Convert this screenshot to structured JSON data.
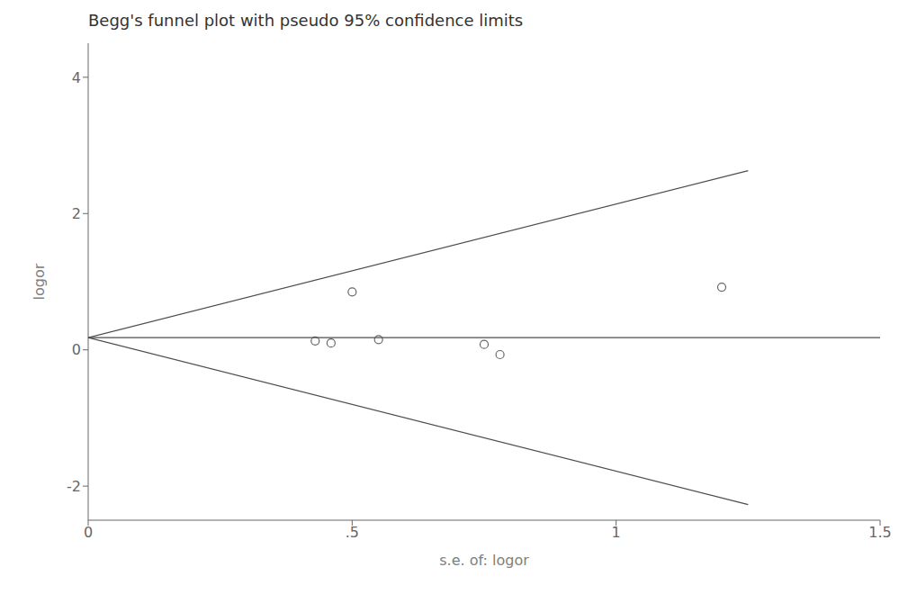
{
  "chart_data": {
    "type": "scatter",
    "title": "Begg's funnel plot with pseudo 95% confidence limits",
    "xlabel": "s.e. of: logor",
    "ylabel": "logor",
    "xlim": [
      0,
      1.5
    ],
    "ylim": [
      -2.5,
      4.5
    ],
    "xticks": [
      0,
      {
        "value": 0.5,
        "label": ".5"
      },
      1,
      1.5
    ],
    "yticks": [
      -2,
      0,
      2,
      4
    ],
    "grid": false,
    "series": [
      {
        "type": "scatter",
        "marker": "circle",
        "color": "#666666",
        "x": [
          0.43,
          0.46,
          0.5,
          0.55,
          0.75,
          0.78,
          1.2
        ],
        "values": [
          0.13,
          0.1,
          0.85,
          0.15,
          0.08,
          -0.07,
          0.92
        ]
      },
      {
        "type": "line",
        "color": "#4d4d4d",
        "x": [
          0,
          1.25
        ],
        "values": [
          0.18,
          2.63
        ]
      },
      {
        "type": "line",
        "color": "#4d4d4d",
        "x": [
          0,
          1.25
        ],
        "values": [
          0.18,
          -2.27
        ]
      },
      {
        "type": "line",
        "color": "#4d4d4d",
        "x": [
          0,
          1.5
        ],
        "values": [
          0.18,
          0.18
        ]
      }
    ]
  }
}
